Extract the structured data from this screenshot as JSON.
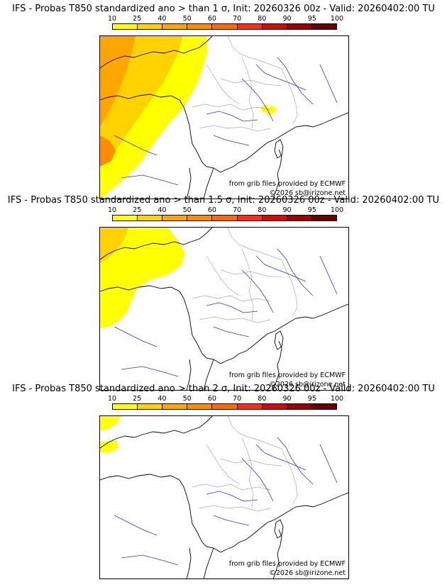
{
  "panels": [
    {
      "title": "IFS - Probas T850  standardized ano > than 1 σ, Init: 20260326 00z - Valid: 20260402:00 TU",
      "credit_source": "from grib files provided by ECMWF",
      "credit_copyright": "©2026 sb@irizone.net"
    },
    {
      "title": "IFS - Probas T850  standardized ano > than 1.5 σ, Init: 20260326 00z - Valid: 20260402:00 TU",
      "credit_source": "from grib files provided by ECMWF",
      "credit_copyright": "©2026 sb@irizone.net"
    },
    {
      "title": "IFS - Probas T850  standardized ano > than 2 σ, Init: 20260326 00z - Valid: 20260402:00 TU",
      "credit_source": "from grib files provided by ECMWF",
      "credit_copyright": "©2026 sb@irizone.net"
    }
  ],
  "colorbar": {
    "ticks": [
      "10",
      "25",
      "40",
      "50",
      "60",
      "70",
      "80",
      "90",
      "95",
      "100"
    ],
    "colors": [
      "#ffff00",
      "#ffd200",
      "#ffa500",
      "#ff8c00",
      "#ff6a00",
      "#ff2a1a",
      "#d70a0a",
      "#a00000",
      "#6a0000"
    ]
  },
  "colors": {
    "coast": "#000000",
    "rivers": "#3333cc",
    "borders": "#aaaaaa"
  }
}
